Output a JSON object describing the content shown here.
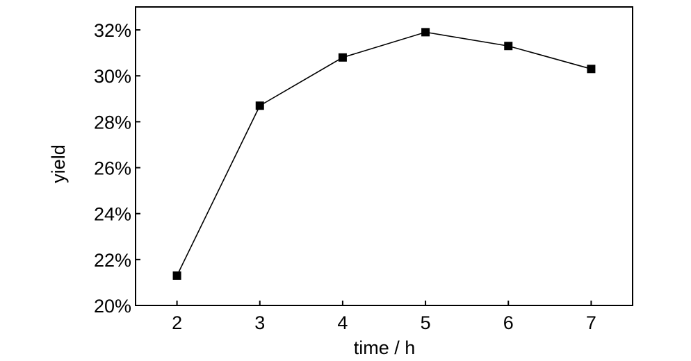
{
  "chart_data": {
    "type": "line",
    "title": "",
    "xlabel": "time / h",
    "ylabel": "yield",
    "x": [
      2,
      3,
      4,
      5,
      6,
      7
    ],
    "series": [
      {
        "values": [
          21.3,
          28.7,
          30.8,
          31.9,
          31.3,
          30.3
        ],
        "marker": "square",
        "color": "#000000"
      }
    ],
    "xlim": [
      1.5,
      7.5
    ],
    "ylim": [
      20,
      33
    ],
    "xticks": [
      2,
      3,
      4,
      5,
      6,
      7
    ],
    "xtick_labels": [
      "2",
      "3",
      "4",
      "5",
      "6",
      "7"
    ],
    "yticks": [
      20,
      22,
      24,
      26,
      28,
      30,
      32
    ],
    "ytick_labels": [
      "20%",
      "22%",
      "24%",
      "26%",
      "28%",
      "30%",
      "32%"
    ],
    "grid": false,
    "legend": "none"
  }
}
